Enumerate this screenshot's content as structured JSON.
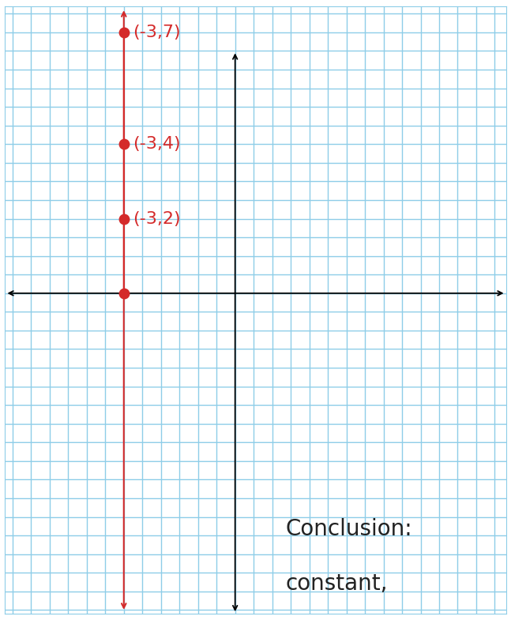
{
  "chart_data": {
    "type": "line",
    "x": [
      -3,
      -3,
      -3,
      -3
    ],
    "values": [
      0,
      2,
      4,
      7
    ],
    "line_x": -3,
    "color": "#d42a2a",
    "marker": "o",
    "line_style": "solid",
    "annotations": [
      {
        "text": "(-3,2)",
        "x": -3,
        "y": 2
      },
      {
        "text": "(-3,4)",
        "x": -3,
        "y": 4
      },
      {
        "text": "(-3,7)",
        "x": -3,
        "y": 7
      }
    ],
    "notes": [
      "Conclusion:",
      "constant,"
    ],
    "xlim": [
      -6.2,
      7.3
    ],
    "ylim": [
      -8.6,
      7.7
    ],
    "xticks": [
      -6,
      -5.5,
      -5,
      -4.5,
      -4,
      -3.5,
      -3,
      -2.5,
      -2,
      -1.5,
      -1,
      -0.5,
      0,
      0.5,
      1,
      1.5,
      2,
      2.5,
      3,
      3.5,
      4,
      4.5,
      5,
      5.5,
      6,
      6.5,
      7
    ],
    "yticks": [
      -8.5,
      -8,
      -7.5,
      -7,
      -6.5,
      -6,
      -5.5,
      -5,
      -4.5,
      -4,
      -3.5,
      -3,
      -2.5,
      -2,
      -1.5,
      -1,
      -0.5,
      0,
      0.5,
      1,
      1.5,
      2,
      2.5,
      3,
      3.5,
      4,
      4.5,
      5,
      5.5,
      6,
      6.5,
      7,
      7.5
    ],
    "grid": true,
    "tick_labels": false
  }
}
